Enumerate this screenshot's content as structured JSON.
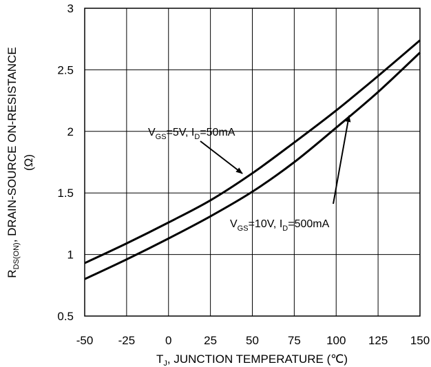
{
  "chart_data": {
    "type": "line",
    "xlabel": {
      "main": "T",
      "sub": "J",
      "rest": ", JUNCTION TEMPERATURE (℃)"
    },
    "ylabel": {
      "line1_main": "R",
      "line1_sub": "DS(ON)",
      "line1_rest": ", DRAIN-SOURCE ON-RESISTANCE",
      "line2": "(Ω)"
    },
    "xlim": [
      -50,
      150
    ],
    "ylim": [
      0.5,
      3
    ],
    "xticks": [
      "-50",
      "-25",
      "0",
      "25",
      "50",
      "75",
      "100",
      "125",
      "150"
    ],
    "yticks": [
      "0.5",
      "1",
      "1.5",
      "2",
      "2.5",
      "3"
    ],
    "grid": true,
    "series": [
      {
        "name": "VGS=5V, ID=50mA",
        "x": [
          -50,
          -25,
          0,
          25,
          50,
          75,
          100,
          125,
          150
        ],
        "y": [
          0.93,
          1.09,
          1.26,
          1.44,
          1.66,
          1.91,
          2.17,
          2.45,
          2.74
        ]
      },
      {
        "name": "VGS=10V, ID=500mA",
        "x": [
          -50,
          -25,
          0,
          25,
          50,
          75,
          100,
          125,
          150
        ],
        "y": [
          0.8,
          0.96,
          1.13,
          1.31,
          1.51,
          1.75,
          2.03,
          2.32,
          2.64
        ]
      }
    ],
    "annotations": [
      {
        "v_main": "V",
        "v_sub": "GS",
        "v_rest": "=5V, I",
        "i_sub": "D",
        "i_rest": "=50mA",
        "series_index": 0
      },
      {
        "v_main": "V",
        "v_sub": "GS",
        "v_rest": "=10V, I",
        "i_sub": "D",
        "i_rest": "=500mA",
        "series_index": 1
      }
    ]
  }
}
